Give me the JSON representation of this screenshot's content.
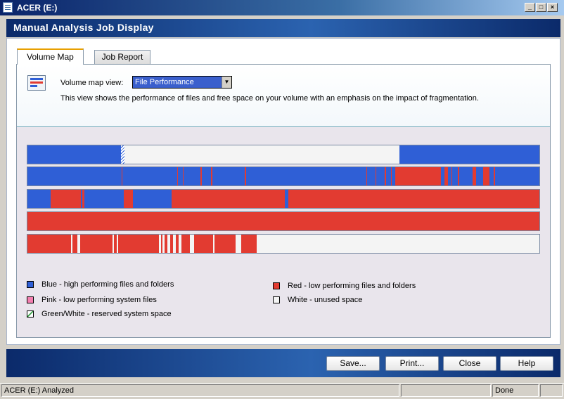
{
  "window": {
    "title": "ACER (E:)",
    "controls": [
      "_",
      "□",
      "×"
    ]
  },
  "header": {
    "title": "Manual Analysis Job Display"
  },
  "tabs": [
    {
      "label": "Volume Map",
      "active": true
    },
    {
      "label": "Job Report",
      "active": false
    }
  ],
  "view": {
    "label": "Volume map view:",
    "selected": "File Performance",
    "description": "This view shows the performance of files and free space on your volume with an emphasis on the impact of fragmentation."
  },
  "colors": {
    "blue": "#2f5fd6",
    "red": "#e23b31",
    "pink": "#f47fb0",
    "white": "#f4f4f4",
    "reserved": "#ffffff"
  },
  "map_rows": [
    {
      "segments": [
        [
          "blue",
          0,
          18.3
        ],
        [
          "reserved",
          18.3,
          18.9
        ],
        [
          "white",
          18.9,
          72.6
        ],
        [
          "blue",
          72.6,
          100
        ]
      ]
    },
    {
      "segments": [
        [
          "blue",
          0,
          100
        ],
        [
          "red",
          18.4,
          18.6
        ],
        [
          "red",
          29.2,
          29.4
        ],
        [
          "red",
          30.3,
          30.5
        ],
        [
          "red",
          33.8,
          34.0
        ],
        [
          "red",
          35.9,
          36.1
        ],
        [
          "red",
          42.5,
          42.7
        ],
        [
          "red",
          66.2,
          66.4
        ],
        [
          "red",
          68.0,
          68.2
        ],
        [
          "red",
          69.8,
          70.0
        ],
        [
          "red",
          71.0,
          71.2
        ],
        [
          "red",
          71.9,
          80.8
        ],
        [
          "red",
          81.5,
          82.1
        ],
        [
          "red",
          82.8,
          83.0
        ],
        [
          "red",
          84.1,
          84.3
        ],
        [
          "red",
          86.9,
          87.6
        ],
        [
          "red",
          89.0,
          90.3
        ],
        [
          "red",
          91.1,
          91.3
        ]
      ]
    },
    {
      "segments": [
        [
          "blue",
          0,
          4.6
        ],
        [
          "red",
          4.6,
          10.5
        ],
        [
          "blue",
          10.5,
          10.7
        ],
        [
          "red",
          10.7,
          11.1
        ],
        [
          "blue",
          11.1,
          18.8
        ],
        [
          "red",
          18.8,
          20.6
        ],
        [
          "blue",
          20.6,
          28.2
        ],
        [
          "red",
          28.2,
          50.3
        ],
        [
          "red",
          31.4,
          31.6
        ],
        [
          "red",
          35.0,
          35.2
        ],
        [
          "red",
          38.7,
          38.9
        ],
        [
          "red",
          43.0,
          43.2
        ],
        [
          "blue",
          50.3,
          50.9
        ],
        [
          "red",
          50.9,
          100
        ]
      ]
    },
    {
      "segments": [
        [
          "red",
          0,
          100
        ]
      ]
    },
    {
      "segments": [
        [
          "red",
          0,
          44.8
        ],
        [
          "white",
          8.5,
          8.8
        ],
        [
          "white",
          9.8,
          10.3
        ],
        [
          "white",
          16.6,
          16.9
        ],
        [
          "white",
          17.4,
          17.7
        ],
        [
          "white",
          25.7,
          26.1
        ],
        [
          "white",
          26.4,
          26.8
        ],
        [
          "white",
          27.4,
          27.9
        ],
        [
          "white",
          28.5,
          29.0
        ],
        [
          "white",
          29.6,
          30.1
        ],
        [
          "white",
          31.7,
          32.5
        ],
        [
          "white",
          36.2,
          36.6
        ],
        [
          "white",
          40.6,
          41.7
        ],
        [
          "white",
          44.8,
          100
        ]
      ]
    }
  ],
  "legend": [
    {
      "label": "Blue - high performing files and folders",
      "swatch": "blue"
    },
    {
      "label": "Pink - low performing system files",
      "swatch": "pink"
    },
    {
      "label": "Green/White - reserved system space",
      "swatch": "reserved"
    },
    {
      "label": "Red - low performing files and folders",
      "swatch": "red"
    },
    {
      "label": "White - unused space",
      "swatch": "white"
    }
  ],
  "buttons": {
    "save": "Save...",
    "print": "Print...",
    "close": "Close",
    "help": "Help"
  },
  "status": {
    "left": "ACER (E:) Analyzed",
    "middle": "",
    "right": "Done"
  }
}
